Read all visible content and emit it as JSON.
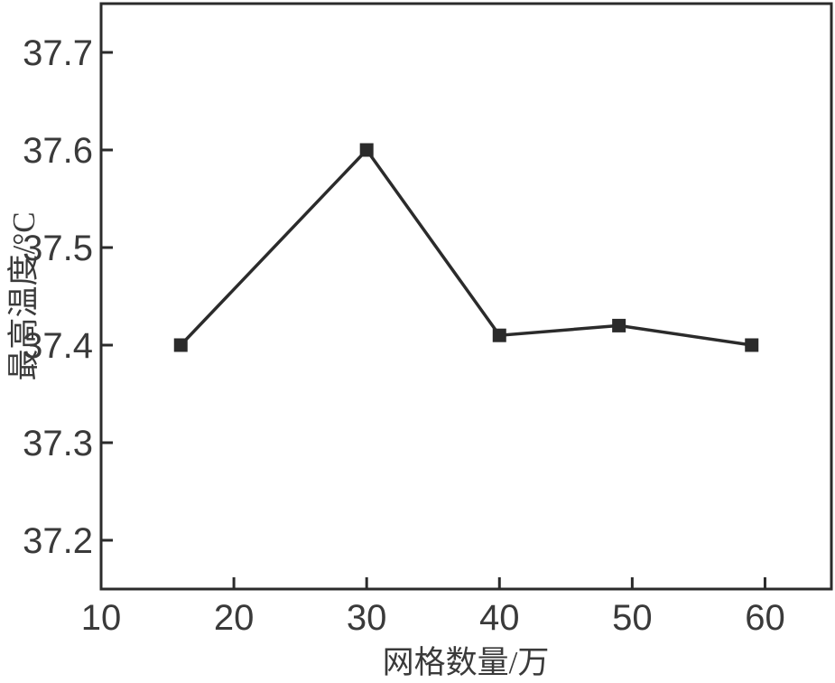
{
  "figure": {
    "background": "#ffffff"
  },
  "chart_data": {
    "type": "line",
    "title": "",
    "xlabel": "网格数量/万",
    "ylabel": "最高温度/°C",
    "series": [
      {
        "x": [
          16,
          30,
          40,
          49,
          59
        ],
        "y": [
          37.4,
          37.6,
          37.41,
          37.42,
          37.4
        ],
        "marker": "square",
        "color": "#2b2b2b"
      }
    ],
    "xlim": [
      10,
      65
    ],
    "ylim": [
      37.15,
      37.75
    ],
    "xticks": [
      10,
      20,
      30,
      40,
      50,
      60
    ],
    "xtick_labels": [
      "10",
      "20",
      "30",
      "40",
      "50",
      "60"
    ],
    "yticks": [
      37.2,
      37.3,
      37.4,
      37.5,
      37.6,
      37.7
    ],
    "ytick_labels": [
      "37.2",
      "37.3",
      "37.4",
      "37.5",
      "37.6",
      "37.7"
    ],
    "grid": false,
    "legend": "none",
    "axis_color": "#2b2b2b",
    "text_color": "#3a3a3a"
  }
}
